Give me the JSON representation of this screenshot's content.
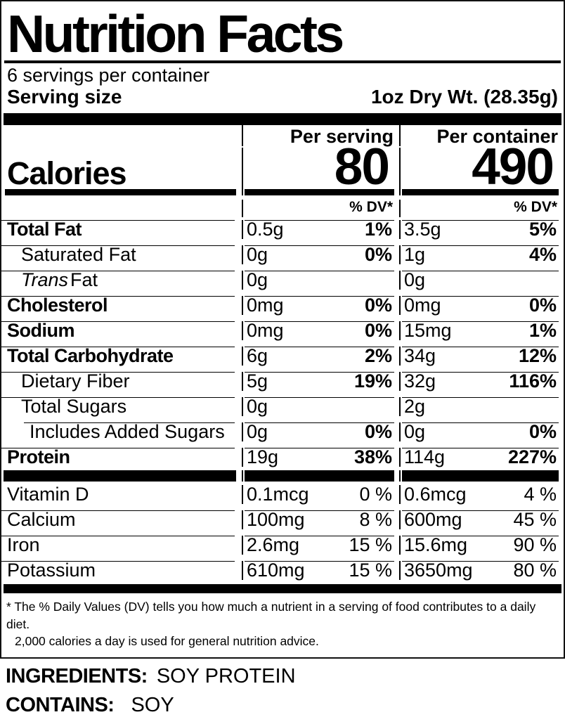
{
  "label": {
    "title": "Nutrition Facts",
    "servings_per_container": "6 servings per container",
    "serving_size": {
      "label": "Serving size",
      "value": "1oz Dry Wt. (28.35g)"
    },
    "column_headers": {
      "per_serving": "Per serving",
      "per_container": "Per container"
    },
    "calories": {
      "label": "Calories",
      "per_serving": "80",
      "per_container": "490"
    },
    "dv_header": "% DV*",
    "nutrients": [
      {
        "name": "Total Fat",
        "serving_amount": "0.5g",
        "serving_dv": "1%",
        "container_amount": "3.5g",
        "container_dv": "5%"
      },
      {
        "name": "Saturated Fat",
        "serving_amount": "0g",
        "serving_dv": "0%",
        "container_amount": "1g",
        "container_dv": "4%"
      },
      {
        "name_italic": "Trans",
        "name": "Fat",
        "serving_amount": "0g",
        "serving_dv": "",
        "container_amount": "0g",
        "container_dv": ""
      },
      {
        "name": "Cholesterol",
        "serving_amount": "0mg",
        "serving_dv": "0%",
        "container_amount": "0mg",
        "container_dv": "0%"
      },
      {
        "name": "Sodium",
        "serving_amount": "0mg",
        "serving_dv": "0%",
        "container_amount": "15mg",
        "container_dv": "1%"
      },
      {
        "name": "Total Carbohydrate",
        "serving_amount": "6g",
        "serving_dv": "2%",
        "container_amount": "34g",
        "container_dv": "12%"
      },
      {
        "name": "Dietary Fiber",
        "serving_amount": "5g",
        "serving_dv": "19%",
        "container_amount": "32g",
        "container_dv": "116%"
      },
      {
        "name": "Total Sugars",
        "serving_amount": "0g",
        "serving_dv": "",
        "container_amount": "2g",
        "container_dv": ""
      },
      {
        "name": "Includes Added Sugars",
        "serving_amount": "0g",
        "serving_dv": "0%",
        "container_amount": "0g",
        "container_dv": "0%"
      },
      {
        "name": "Protein",
        "serving_amount": "19g",
        "serving_dv": "38%",
        "container_amount": "114g",
        "container_dv": "227%"
      }
    ],
    "vitamins": [
      {
        "name": "Vitamin D",
        "serving_amount": "0.1mcg",
        "serving_dv": "0 %",
        "container_amount": "0.6mcg",
        "container_dv": "4 %"
      },
      {
        "name": "Calcium",
        "serving_amount": "100mg",
        "serving_dv": "8 %",
        "container_amount": "600mg",
        "container_dv": "45 %"
      },
      {
        "name": "Iron",
        "serving_amount": "2.6mg",
        "serving_dv": "15 %",
        "container_amount": "15.6mg",
        "container_dv": "90 %"
      },
      {
        "name": "Potassium",
        "serving_amount": "610mg",
        "serving_dv": "15 %",
        "container_amount": "3650mg",
        "container_dv": "80 %"
      }
    ],
    "footnote": {
      "line1": "* The % Daily Values (DV) tells you how much a nutrient in a serving of food contributes to a daily diet.",
      "line2": "2,000 calories a day is used for general nutrition advice."
    }
  },
  "ingredients": {
    "label": "INGREDIENTS:",
    "value": "SOY PROTEIN"
  },
  "contains": {
    "label": "CONTAINS:",
    "value": "SOY"
  }
}
